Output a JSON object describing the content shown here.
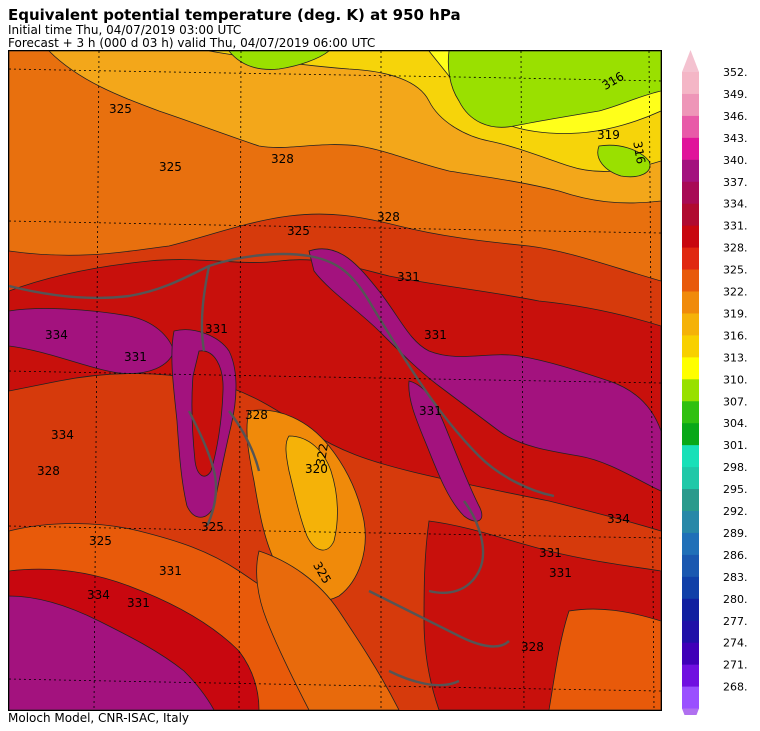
{
  "header": {
    "title": "Equivalent potential temperature (deg. K) at 950 hPa",
    "initial_time": "Initial time  Thu, 04/07/2019  03:00 UTC",
    "forecast": "Forecast +   3 h  (000 d 03 h)  valid Thu, 04/07/2019 06:00 UTC"
  },
  "footer": "Moloch Model, CNR-ISAC, Italy",
  "colorbar": {
    "levels": [
      {
        "label": "352.",
        "color": "#f4b6c6"
      },
      {
        "label": "349.",
        "color": "#ee96b8"
      },
      {
        "label": "346.",
        "color": "#e85aa8"
      },
      {
        "label": "343.",
        "color": "#e0149a"
      },
      {
        "label": "340.",
        "color": "#a3127e"
      },
      {
        "label": "337.",
        "color": "#a80a55"
      },
      {
        "label": "334.",
        "color": "#b00a30"
      },
      {
        "label": "331.",
        "color": "#c8070f"
      },
      {
        "label": "328.",
        "color": "#e02810"
      },
      {
        "label": "325.",
        "color": "#e85a0a"
      },
      {
        "label": "322.",
        "color": "#f08a0a"
      },
      {
        "label": "319.",
        "color": "#f5b208"
      },
      {
        "label": "316.",
        "color": "#f8d000"
      },
      {
        "label": "313.",
        "color": "#ffff00"
      },
      {
        "label": "310.",
        "color": "#98e000"
      },
      {
        "label": "307.",
        "color": "#30c010"
      },
      {
        "label": "304.",
        "color": "#08a818"
      },
      {
        "label": "301.",
        "color": "#18e0b8"
      },
      {
        "label": "298.",
        "color": "#20c8a8"
      },
      {
        "label": "295.",
        "color": "#2a9a8c"
      },
      {
        "label": "292.",
        "color": "#2888a8"
      },
      {
        "label": "289.",
        "color": "#2070b8"
      },
      {
        "label": "286.",
        "color": "#1a58b0"
      },
      {
        "label": "283.",
        "color": "#1040a8"
      },
      {
        "label": "280.",
        "color": "#1020a0"
      },
      {
        "label": "277.",
        "color": "#2010a8"
      },
      {
        "label": "274.",
        "color": "#4000b8"
      },
      {
        "label": "271.",
        "color": "#7010e0"
      },
      {
        "label": "268.",
        "color": "#9a50ff"
      }
    ],
    "top_arrow_color": "#f4c2d0",
    "bottom_arrow_color": "#b070f0"
  },
  "contour_labels": [
    "325",
    "325",
    "328",
    "328",
    "331",
    "331",
    "334",
    "331",
    "331",
    "322",
    "320",
    "322",
    "328",
    "331",
    "334",
    "331",
    "331",
    "325",
    "328",
    "325",
    "331",
    "334",
    "331",
    "328",
    "319",
    "316",
    "316",
    "325",
    "334",
    "325"
  ]
}
